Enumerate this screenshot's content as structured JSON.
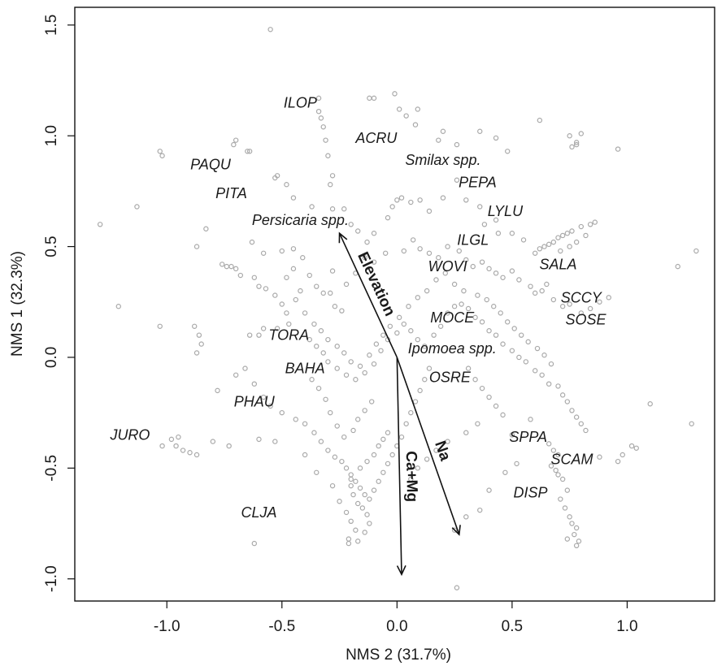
{
  "chart_data": {
    "type": "scatter",
    "xlabel": "NMS 2 (31.7%)",
    "ylabel": "NMS 1 (32.3%)",
    "xlim": [
      -1.4,
      1.38
    ],
    "ylim": [
      -1.1,
      1.58
    ],
    "xticks": [
      -1.0,
      -0.5,
      0.0,
      0.5,
      1.0
    ],
    "xtick_labels": [
      "-1.0",
      "-0.5",
      "0.0",
      "0.5",
      "1.0"
    ],
    "yticks": [
      -1.0,
      -0.5,
      0.0,
      0.5,
      1.0,
      1.5
    ],
    "ytick_labels": [
      "-1.0",
      "-0.5",
      "0.0",
      "0.5",
      "1.0",
      "1.5"
    ],
    "grid": false,
    "point_color": "#a9a9a9",
    "arrow_color": "#111111",
    "species": [
      {
        "label": "ILOP",
        "x": -0.42,
        "y": 1.15
      },
      {
        "label": "ACRU",
        "x": -0.09,
        "y": 0.99
      },
      {
        "label": "PAQU",
        "x": -0.81,
        "y": 0.87
      },
      {
        "label": "Smilax spp.",
        "x": 0.2,
        "y": 0.89
      },
      {
        "label": "PEPA",
        "x": 0.35,
        "y": 0.79
      },
      {
        "label": "PITA",
        "x": -0.72,
        "y": 0.74
      },
      {
        "label": "LYLU",
        "x": 0.47,
        "y": 0.66
      },
      {
        "label": "Persicaria spp.",
        "x": -0.42,
        "y": 0.62
      },
      {
        "label": "ILGL",
        "x": 0.33,
        "y": 0.53
      },
      {
        "label": "WOVI",
        "x": 0.22,
        "y": 0.41
      },
      {
        "label": "SALA",
        "x": 0.7,
        "y": 0.42
      },
      {
        "label": "SCCY",
        "x": 0.8,
        "y": 0.27
      },
      {
        "label": "MOCE",
        "x": 0.24,
        "y": 0.18
      },
      {
        "label": "SOSE",
        "x": 0.82,
        "y": 0.17
      },
      {
        "label": "TORA",
        "x": -0.47,
        "y": 0.1
      },
      {
        "label": "Ipomoea spp.",
        "x": 0.24,
        "y": 0.04
      },
      {
        "label": "BAHA",
        "x": -0.4,
        "y": -0.05
      },
      {
        "label": "OSRE",
        "x": 0.23,
        "y": -0.09
      },
      {
        "label": "PHAU",
        "x": -0.62,
        "y": -0.2
      },
      {
        "label": "JURO",
        "x": -1.16,
        "y": -0.35
      },
      {
        "label": "SPPA",
        "x": 0.57,
        "y": -0.36
      },
      {
        "label": "SCAM",
        "x": 0.76,
        "y": -0.46
      },
      {
        "label": "DISP",
        "x": 0.58,
        "y": -0.61
      },
      {
        "label": "CLJA",
        "x": -0.6,
        "y": -0.7
      }
    ],
    "vectors": [
      {
        "label": "Elevation",
        "x": -0.25,
        "y": 0.56
      },
      {
        "label": "Na",
        "x": 0.27,
        "y": -0.8
      },
      {
        "label": "Ca+Mg",
        "x": 0.02,
        "y": -0.98
      }
    ],
    "points": [
      [
        -0.55,
        1.48
      ],
      [
        -0.34,
        1.17
      ],
      [
        -0.34,
        1.11
      ],
      [
        -0.33,
        1.08
      ],
      [
        -0.32,
        1.04
      ],
      [
        -0.31,
        0.98
      ],
      [
        -0.3,
        0.91
      ],
      [
        -0.28,
        0.82
      ],
      [
        -0.29,
        0.78
      ],
      [
        -0.12,
        1.17
      ],
      [
        -0.1,
        1.17
      ],
      [
        -0.01,
        1.19
      ],
      [
        0.01,
        1.12
      ],
      [
        0.04,
        1.09
      ],
      [
        0.09,
        1.12
      ],
      [
        0.08,
        1.05
      ],
      [
        0.18,
        0.98
      ],
      [
        0.2,
        1.02
      ],
      [
        0.26,
        0.96
      ],
      [
        0.36,
        1.02
      ],
      [
        0.43,
        0.99
      ],
      [
        0.48,
        0.93
      ],
      [
        0.62,
        1.07
      ],
      [
        0.75,
        1.0
      ],
      [
        0.78,
        0.97
      ],
      [
        0.8,
        1.01
      ],
      [
        0.78,
        0.96
      ],
      [
        0.76,
        0.95
      ],
      [
        0.96,
        0.94
      ],
      [
        -1.03,
        0.93
      ],
      [
        -1.02,
        0.91
      ],
      [
        -0.7,
        0.98
      ],
      [
        -0.71,
        0.96
      ],
      [
        -0.65,
        0.93
      ],
      [
        -0.64,
        0.93
      ],
      [
        -0.52,
        0.82
      ],
      [
        -0.53,
        0.81
      ],
      [
        -0.48,
        0.78
      ],
      [
        -0.45,
        0.72
      ],
      [
        -0.37,
        0.68
      ],
      [
        -0.28,
        0.67
      ],
      [
        -0.23,
        0.67
      ],
      [
        -0.2,
        0.6
      ],
      [
        -0.17,
        0.57
      ],
      [
        -0.13,
        0.52
      ],
      [
        -0.1,
        0.56
      ],
      [
        -0.04,
        0.63
      ],
      [
        -0.02,
        0.68
      ],
      [
        0.0,
        0.71
      ],
      [
        0.02,
        0.72
      ],
      [
        0.06,
        0.7
      ],
      [
        0.1,
        0.71
      ],
      [
        0.14,
        0.66
      ],
      [
        0.2,
        0.72
      ],
      [
        0.26,
        0.8
      ],
      [
        0.3,
        0.71
      ],
      [
        0.36,
        0.68
      ],
      [
        0.38,
        0.6
      ],
      [
        0.43,
        0.62
      ],
      [
        0.44,
        0.56
      ],
      [
        0.5,
        0.56
      ],
      [
        0.55,
        0.53
      ],
      [
        0.6,
        0.47
      ],
      [
        0.62,
        0.49
      ],
      [
        0.64,
        0.5
      ],
      [
        0.66,
        0.51
      ],
      [
        0.68,
        0.52
      ],
      [
        0.7,
        0.54
      ],
      [
        0.72,
        0.55
      ],
      [
        0.74,
        0.56
      ],
      [
        0.76,
        0.57
      ],
      [
        0.8,
        0.59
      ],
      [
        0.84,
        0.6
      ],
      [
        0.86,
        0.61
      ],
      [
        0.82,
        0.55
      ],
      [
        0.78,
        0.52
      ],
      [
        0.75,
        0.5
      ],
      [
        0.71,
        0.48
      ],
      [
        1.3,
        0.48
      ],
      [
        1.22,
        0.41
      ],
      [
        -1.29,
        0.6
      ],
      [
        -1.13,
        0.68
      ],
      [
        -0.87,
        0.5
      ],
      [
        -0.83,
        0.58
      ],
      [
        -0.76,
        0.42
      ],
      [
        -0.74,
        0.41
      ],
      [
        -0.72,
        0.41
      ],
      [
        -0.7,
        0.4
      ],
      [
        -0.63,
        0.52
      ],
      [
        -0.58,
        0.47
      ],
      [
        -0.5,
        0.48
      ],
      [
        -0.45,
        0.49
      ],
      [
        -0.41,
        0.45
      ],
      [
        -0.38,
        0.37
      ],
      [
        -0.35,
        0.32
      ],
      [
        -0.32,
        0.29
      ],
      [
        -0.29,
        0.29
      ],
      [
        -0.27,
        0.23
      ],
      [
        -0.24,
        0.21
      ],
      [
        -0.28,
        0.39
      ],
      [
        -0.22,
        0.33
      ],
      [
        -0.18,
        0.38
      ],
      [
        -0.14,
        0.45
      ],
      [
        -0.1,
        0.43
      ],
      [
        -0.05,
        0.47
      ],
      [
        0.03,
        0.48
      ],
      [
        0.07,
        0.53
      ],
      [
        0.1,
        0.49
      ],
      [
        0.14,
        0.47
      ],
      [
        0.18,
        0.45
      ],
      [
        0.22,
        0.5
      ],
      [
        0.27,
        0.48
      ],
      [
        0.3,
        0.44
      ],
      [
        0.33,
        0.41
      ],
      [
        0.37,
        0.43
      ],
      [
        0.4,
        0.4
      ],
      [
        0.43,
        0.38
      ],
      [
        0.46,
        0.36
      ],
      [
        0.5,
        0.39
      ],
      [
        0.53,
        0.35
      ],
      [
        0.58,
        0.32
      ],
      [
        0.6,
        0.29
      ],
      [
        0.63,
        0.3
      ],
      [
        0.65,
        0.33
      ],
      [
        0.68,
        0.26
      ],
      [
        0.72,
        0.23
      ],
      [
        0.75,
        0.24
      ],
      [
        0.8,
        0.2
      ],
      [
        0.84,
        0.22
      ],
      [
        0.88,
        0.25
      ],
      [
        0.92,
        0.27
      ],
      [
        -1.21,
        0.23
      ],
      [
        -1.03,
        0.14
      ],
      [
        -0.88,
        0.14
      ],
      [
        -0.86,
        0.1
      ],
      [
        -0.85,
        0.06
      ],
      [
        -0.87,
        0.02
      ],
      [
        -0.68,
        0.37
      ],
      [
        -0.62,
        0.36
      ],
      [
        -0.6,
        0.32
      ],
      [
        -0.57,
        0.31
      ],
      [
        -0.53,
        0.28
      ],
      [
        -0.5,
        0.24
      ],
      [
        -0.48,
        0.2
      ],
      [
        -0.47,
        0.15
      ],
      [
        -0.52,
        0.13
      ],
      [
        -0.58,
        0.13
      ],
      [
        -0.6,
        0.1
      ],
      [
        -0.64,
        0.1
      ],
      [
        -0.38,
        0.08
      ],
      [
        -0.35,
        0.05
      ],
      [
        -0.32,
        0.02
      ],
      [
        -0.3,
        -0.02
      ],
      [
        -0.26,
        -0.05
      ],
      [
        -0.22,
        -0.08
      ],
      [
        -0.18,
        -0.1
      ],
      [
        -0.14,
        -0.07
      ],
      [
        -0.1,
        -0.03
      ],
      [
        -0.07,
        0.03
      ],
      [
        -0.04,
        0.08
      ],
      [
        0.0,
        0.11
      ],
      [
        0.03,
        0.15
      ],
      [
        0.06,
        0.12
      ],
      [
        0.09,
        0.08
      ],
      [
        0.12,
        0.05
      ],
      [
        0.16,
        0.1
      ],
      [
        0.19,
        0.14
      ],
      [
        0.22,
        0.2
      ],
      [
        0.25,
        0.23
      ],
      [
        0.28,
        0.24
      ],
      [
        0.31,
        0.22
      ],
      [
        0.34,
        0.18
      ],
      [
        0.37,
        0.16
      ],
      [
        0.4,
        0.12
      ],
      [
        0.43,
        0.1
      ],
      [
        0.46,
        0.06
      ],
      [
        0.5,
        0.03
      ],
      [
        0.53,
        0.0
      ],
      [
        0.56,
        -0.02
      ],
      [
        0.6,
        -0.06
      ],
      [
        0.63,
        -0.08
      ],
      [
        0.66,
        -0.12
      ],
      [
        0.7,
        -0.13
      ],
      [
        0.72,
        -0.17
      ],
      [
        0.74,
        -0.2
      ],
      [
        0.76,
        -0.24
      ],
      [
        0.78,
        -0.27
      ],
      [
        0.8,
        -0.3
      ],
      [
        0.82,
        -0.33
      ],
      [
        1.1,
        -0.21
      ],
      [
        1.28,
        -0.3
      ],
      [
        -0.78,
        -0.15
      ],
      [
        -0.7,
        -0.08
      ],
      [
        -0.66,
        -0.05
      ],
      [
        -0.62,
        -0.12
      ],
      [
        -0.58,
        -0.18
      ],
      [
        -0.55,
        -0.22
      ],
      [
        -0.5,
        -0.25
      ],
      [
        -0.44,
        -0.28
      ],
      [
        -0.4,
        -0.3
      ],
      [
        -0.36,
        -0.34
      ],
      [
        -0.33,
        -0.38
      ],
      [
        -0.3,
        -0.42
      ],
      [
        -0.27,
        -0.45
      ],
      [
        -0.24,
        -0.47
      ],
      [
        -0.22,
        -0.5
      ],
      [
        -0.2,
        -0.53
      ],
      [
        -0.18,
        -0.56
      ],
      [
        -0.16,
        -0.59
      ],
      [
        -0.14,
        -0.62
      ],
      [
        -0.12,
        -0.64
      ],
      [
        -0.1,
        -0.6
      ],
      [
        -0.08,
        -0.56
      ],
      [
        -0.06,
        -0.52
      ],
      [
        -0.04,
        -0.48
      ],
      [
        -0.02,
        -0.44
      ],
      [
        0.0,
        -0.4
      ],
      [
        0.02,
        -0.36
      ],
      [
        0.04,
        -0.3
      ],
      [
        0.06,
        -0.25
      ],
      [
        0.08,
        -0.2
      ],
      [
        0.1,
        -0.15
      ],
      [
        0.12,
        -0.1
      ],
      [
        0.14,
        -0.05
      ],
      [
        -0.98,
        -0.37
      ],
      [
        -0.96,
        -0.4
      ],
      [
        -0.93,
        -0.42
      ],
      [
        -0.9,
        -0.43
      ],
      [
        -0.87,
        -0.44
      ],
      [
        -0.95,
        -0.36
      ],
      [
        -1.02,
        -0.4
      ],
      [
        -0.8,
        -0.38
      ],
      [
        -0.73,
        -0.4
      ],
      [
        -0.6,
        -0.37
      ],
      [
        -0.53,
        -0.38
      ],
      [
        -0.4,
        -0.44
      ],
      [
        -0.35,
        -0.52
      ],
      [
        -0.28,
        -0.58
      ],
      [
        -0.25,
        -0.65
      ],
      [
        -0.22,
        -0.7
      ],
      [
        -0.2,
        -0.74
      ],
      [
        -0.18,
        -0.78
      ],
      [
        -0.21,
        -0.82
      ],
      [
        -0.21,
        -0.84
      ],
      [
        -0.17,
        -0.83
      ],
      [
        -0.14,
        -0.79
      ],
      [
        -0.12,
        -0.75
      ],
      [
        -0.13,
        -0.71
      ],
      [
        -0.15,
        -0.68
      ],
      [
        -0.17,
        -0.66
      ],
      [
        -0.19,
        -0.62
      ],
      [
        -0.2,
        -0.58
      ],
      [
        -0.2,
        -0.55
      ],
      [
        -0.16,
        -0.5
      ],
      [
        -0.13,
        -0.47
      ],
      [
        -0.1,
        -0.44
      ],
      [
        -0.08,
        -0.4
      ],
      [
        -0.06,
        -0.37
      ],
      [
        -0.04,
        -0.34
      ],
      [
        -0.62,
        -0.84
      ],
      [
        0.26,
        -1.04
      ],
      [
        0.25,
        -0.78
      ],
      [
        0.3,
        -0.72
      ],
      [
        0.36,
        -0.69
      ],
      [
        0.4,
        -0.6
      ],
      [
        0.47,
        -0.52
      ],
      [
        0.52,
        -0.48
      ],
      [
        0.5,
        -0.35
      ],
      [
        0.58,
        -0.28
      ],
      [
        0.66,
        -0.39
      ],
      [
        0.68,
        -0.42
      ],
      [
        0.7,
        -0.44
      ],
      [
        0.67,
        -0.49
      ],
      [
        0.69,
        -0.51
      ],
      [
        0.7,
        -0.53
      ],
      [
        0.72,
        -0.55
      ],
      [
        0.74,
        -0.6
      ],
      [
        0.71,
        -0.64
      ],
      [
        0.73,
        -0.68
      ],
      [
        0.75,
        -0.72
      ],
      [
        0.76,
        -0.75
      ],
      [
        0.78,
        -0.77
      ],
      [
        0.77,
        -0.8
      ],
      [
        0.79,
        -0.83
      ],
      [
        0.78,
        -0.85
      ],
      [
        0.74,
        -0.82
      ],
      [
        0.88,
        -0.45
      ],
      [
        0.96,
        -0.47
      ],
      [
        1.02,
        -0.4
      ],
      [
        1.04,
        -0.41
      ],
      [
        0.98,
        -0.44
      ],
      [
        -0.45,
        0.4
      ],
      [
        -0.48,
        0.36
      ],
      [
        -0.42,
        0.3
      ],
      [
        -0.44,
        0.26
      ],
      [
        -0.4,
        0.2
      ],
      [
        -0.36,
        0.15
      ],
      [
        -0.33,
        0.12
      ],
      [
        -0.3,
        0.08
      ],
      [
        -0.26,
        0.05
      ],
      [
        -0.23,
        0.02
      ],
      [
        -0.2,
        -0.02
      ],
      [
        -0.16,
        -0.04
      ],
      [
        -0.12,
        0.01
      ],
      [
        -0.09,
        0.06
      ],
      [
        -0.06,
        0.1
      ],
      [
        -0.03,
        0.14
      ],
      [
        0.01,
        0.18
      ],
      [
        0.05,
        0.23
      ],
      [
        0.09,
        0.27
      ],
      [
        0.13,
        0.3
      ],
      [
        0.17,
        0.35
      ],
      [
        0.21,
        0.38
      ],
      [
        0.25,
        0.33
      ],
      [
        0.29,
        0.3
      ],
      [
        0.35,
        0.28
      ],
      [
        0.39,
        0.26
      ],
      [
        0.42,
        0.23
      ],
      [
        0.45,
        0.2
      ],
      [
        0.48,
        0.16
      ],
      [
        0.51,
        0.13
      ],
      [
        0.54,
        0.1
      ],
      [
        0.57,
        0.07
      ],
      [
        0.61,
        0.04
      ],
      [
        0.64,
        0.01
      ],
      [
        0.67,
        -0.03
      ],
      [
        0.31,
        -0.05
      ],
      [
        0.34,
        -0.1
      ],
      [
        0.37,
        -0.14
      ],
      [
        0.4,
        -0.18
      ],
      [
        0.43,
        -0.22
      ],
      [
        0.46,
        -0.26
      ],
      [
        0.35,
        -0.3
      ],
      [
        0.3,
        -0.34
      ],
      [
        0.22,
        -0.38
      ],
      [
        0.17,
        -0.42
      ],
      [
        0.13,
        -0.46
      ],
      [
        0.09,
        -0.5
      ],
      [
        0.06,
        -0.55
      ],
      [
        -0.11,
        -0.2
      ],
      [
        -0.14,
        -0.24
      ],
      [
        -0.17,
        -0.28
      ],
      [
        -0.19,
        -0.33
      ],
      [
        -0.23,
        -0.36
      ],
      [
        -0.26,
        -0.31
      ],
      [
        -0.29,
        -0.25
      ],
      [
        -0.31,
        -0.19
      ],
      [
        -0.34,
        -0.14
      ],
      [
        -0.37,
        -0.1
      ]
    ]
  }
}
